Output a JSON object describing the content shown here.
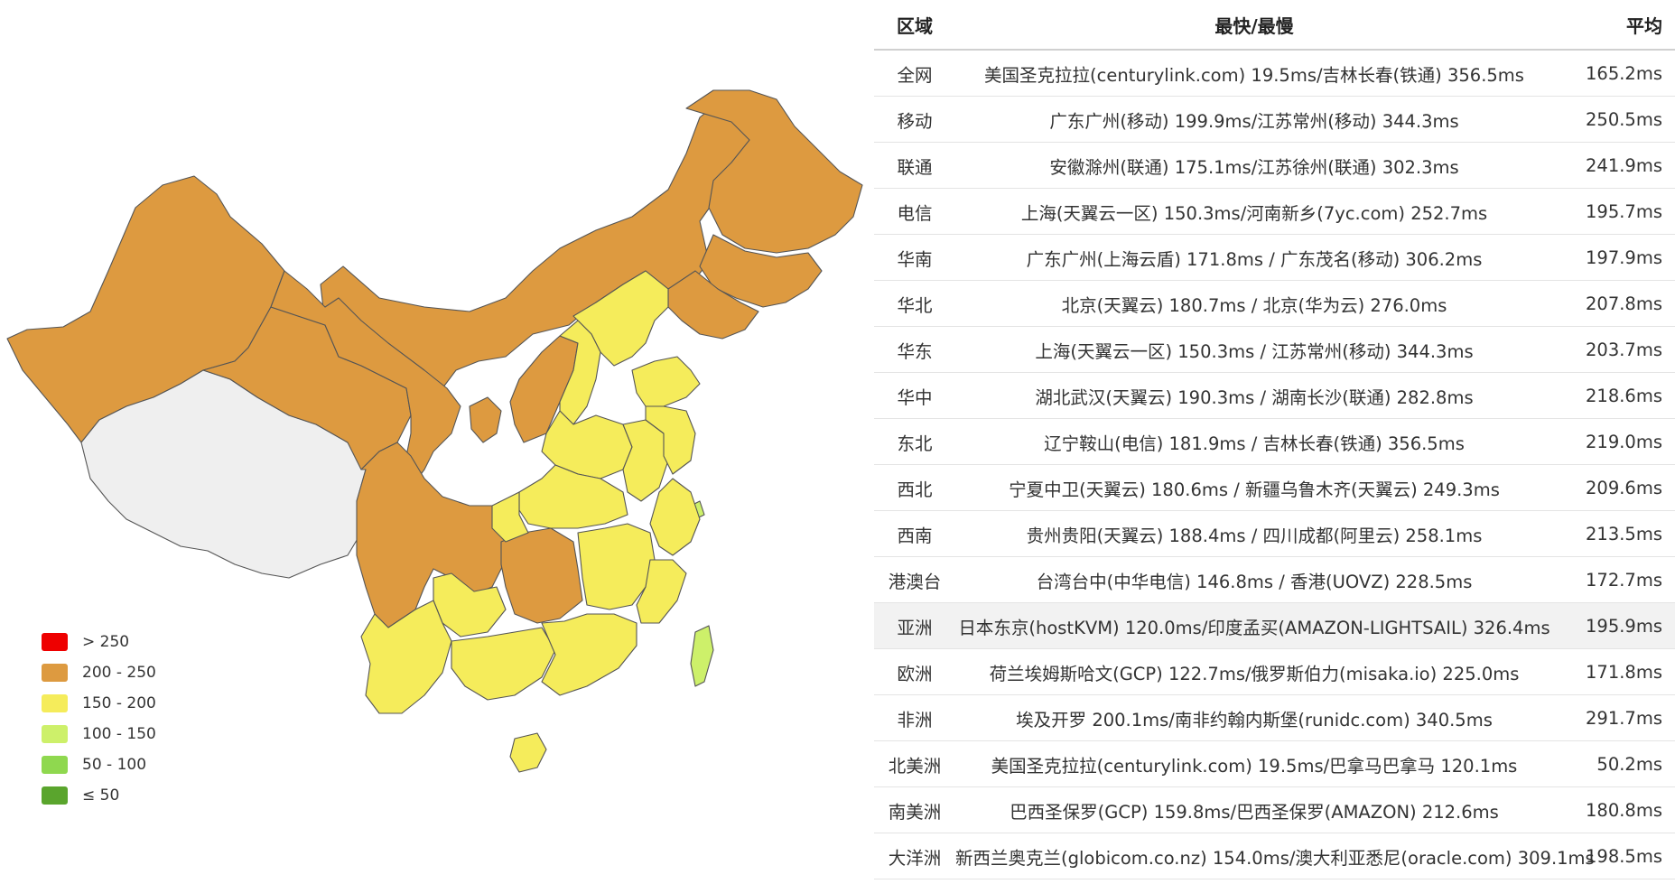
{
  "legend": [
    {
      "label": "> 250",
      "color": "#ee0000"
    },
    {
      "label": "200 - 250",
      "color": "#dd9a40"
    },
    {
      "label": "150 - 200",
      "color": "#f5ec5b"
    },
    {
      "label": "100 - 150",
      "color": "#cdf06a"
    },
    {
      "label": "50 - 100",
      "color": "#8fd84f"
    },
    {
      "label": "≤ 50",
      "color": "#5aa52d"
    }
  ],
  "no_data_color": "#efefef",
  "table": {
    "headers": {
      "region": "区域",
      "range": "最快/最慢",
      "avg": "平均"
    },
    "rows": [
      {
        "region": "全网",
        "range": "美国圣克拉拉(centurylink.com) 19.5ms/吉林长春(铁通) 356.5ms",
        "avg": "165.2ms"
      },
      {
        "region": "移动",
        "range": "广东广州(移动) 199.9ms/江苏常州(移动) 344.3ms",
        "avg": "250.5ms"
      },
      {
        "region": "联通",
        "range": "安徽滁州(联通) 175.1ms/江苏徐州(联通) 302.3ms",
        "avg": "241.9ms"
      },
      {
        "region": "电信",
        "range": "上海(天翼云一区) 150.3ms/河南新乡(7yc.com) 252.7ms",
        "avg": "195.7ms"
      },
      {
        "region": "华南",
        "range": "广东广州(上海云盾) 171.8ms / 广东茂名(移动) 306.2ms",
        "avg": "197.9ms"
      },
      {
        "region": "华北",
        "range": "北京(天翼云) 180.7ms / 北京(华为云) 276.0ms",
        "avg": "207.8ms"
      },
      {
        "region": "华东",
        "range": "上海(天翼云一区) 150.3ms / 江苏常州(移动) 344.3ms",
        "avg": "203.7ms"
      },
      {
        "region": "华中",
        "range": "湖北武汉(天翼云) 190.3ms / 湖南长沙(联通) 282.8ms",
        "avg": "218.6ms"
      },
      {
        "region": "东北",
        "range": "辽宁鞍山(电信) 181.9ms / 吉林长春(铁通) 356.5ms",
        "avg": "219.0ms"
      },
      {
        "region": "西北",
        "range": "宁夏中卫(天翼云) 180.6ms / 新疆乌鲁木齐(天翼云) 249.3ms",
        "avg": "209.6ms"
      },
      {
        "region": "西南",
        "range": "贵州贵阳(天翼云) 188.4ms / 四川成都(阿里云) 258.1ms",
        "avg": "213.5ms"
      },
      {
        "region": "港澳台",
        "range": "台湾台中(中华电信) 146.8ms / 香港(UOVZ) 228.5ms",
        "avg": "172.7ms"
      },
      {
        "region": "亚洲",
        "range": "日本东京(hostKVM) 120.0ms/印度孟买(AMAZON-LIGHTSAIL) 326.4ms",
        "avg": "195.9ms",
        "highlighted": true
      },
      {
        "region": "欧洲",
        "range": "荷兰埃姆斯哈文(GCP) 122.7ms/俄罗斯伯力(misaka.io) 225.0ms",
        "avg": "171.8ms"
      },
      {
        "region": "非洲",
        "range": "埃及开罗 200.1ms/南非约翰内斯堡(runidc.com) 340.5ms",
        "avg": "291.7ms"
      },
      {
        "region": "北美洲",
        "range": "美国圣克拉拉(centurylink.com) 19.5ms/巴拿马巴拿马 120.1ms",
        "avg": "50.2ms"
      },
      {
        "region": "南美洲",
        "range": "巴西圣保罗(GCP) 159.8ms/巴西圣保罗(AMAZON) 212.6ms",
        "avg": "180.8ms"
      },
      {
        "region": "大洋洲",
        "range": "新西兰奥克兰(globicom.co.nz) 154.0ms/澳大利亚悉尼(oracle.com) 309.1ms",
        "avg": "198.5ms"
      }
    ]
  }
}
